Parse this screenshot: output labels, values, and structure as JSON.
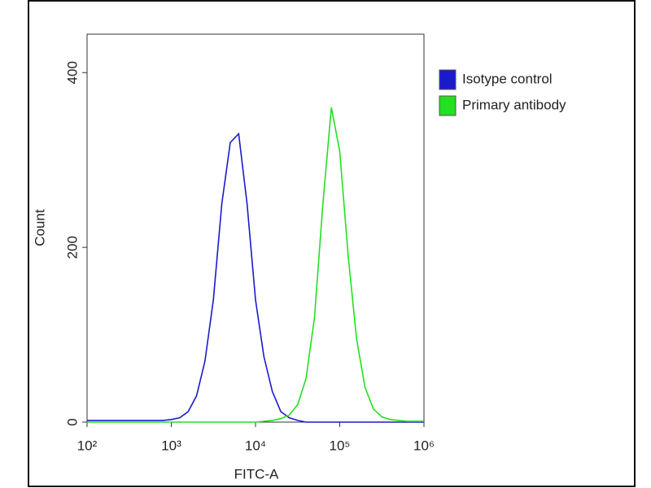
{
  "chart_data": {
    "type": "line",
    "xlabel": "FITC-A",
    "ylabel": "Count",
    "xscale": "log",
    "xlim": [
      100,
      1000000
    ],
    "xticks": [
      {
        "value": 100,
        "label": "10²"
      },
      {
        "value": 1000,
        "label": "10³"
      },
      {
        "value": 10000,
        "label": "10⁴"
      },
      {
        "value": 100000,
        "label": "10⁵"
      },
      {
        "value": 1000000,
        "label": "10⁶"
      }
    ],
    "ylim": [
      0,
      444
    ],
    "yticks": [
      0,
      200,
      400
    ],
    "legend": "top-right",
    "x": [
      100,
      126,
      158,
      200,
      251,
      316,
      398,
      501,
      631,
      794,
      1000,
      1259,
      1585,
      1995,
      2512,
      3162,
      3981,
      5012,
      6310,
      7943,
      10000,
      12589,
      15849,
      19953,
      25119,
      31623,
      39811,
      50119,
      63096,
      79433,
      100000,
      125893,
      158489,
      199526,
      251189,
      316228,
      398107,
      501187,
      630957,
      794328,
      1000000
    ],
    "series": [
      {
        "name": "Isotype control",
        "color": "#1a1acc",
        "values": [
          2,
          2,
          2,
          2,
          2,
          2,
          2,
          2,
          2,
          2,
          3,
          5,
          12,
          30,
          70,
          140,
          250,
          320,
          330,
          250,
          140,
          75,
          35,
          12,
          5,
          2,
          0,
          0,
          0,
          0,
          0,
          0,
          0,
          0,
          0,
          0,
          0,
          0,
          0,
          0,
          0
        ]
      },
      {
        "name": "Primary antibody",
        "color": "#22e022",
        "values": [
          0,
          0,
          0,
          0,
          0,
          0,
          0,
          0,
          0,
          0,
          0,
          0,
          0,
          0,
          0,
          0,
          0,
          0,
          0,
          0,
          0,
          1,
          2,
          4,
          8,
          20,
          50,
          120,
          250,
          360,
          310,
          190,
          95,
          40,
          15,
          6,
          3,
          2,
          1,
          1,
          1
        ]
      }
    ]
  }
}
